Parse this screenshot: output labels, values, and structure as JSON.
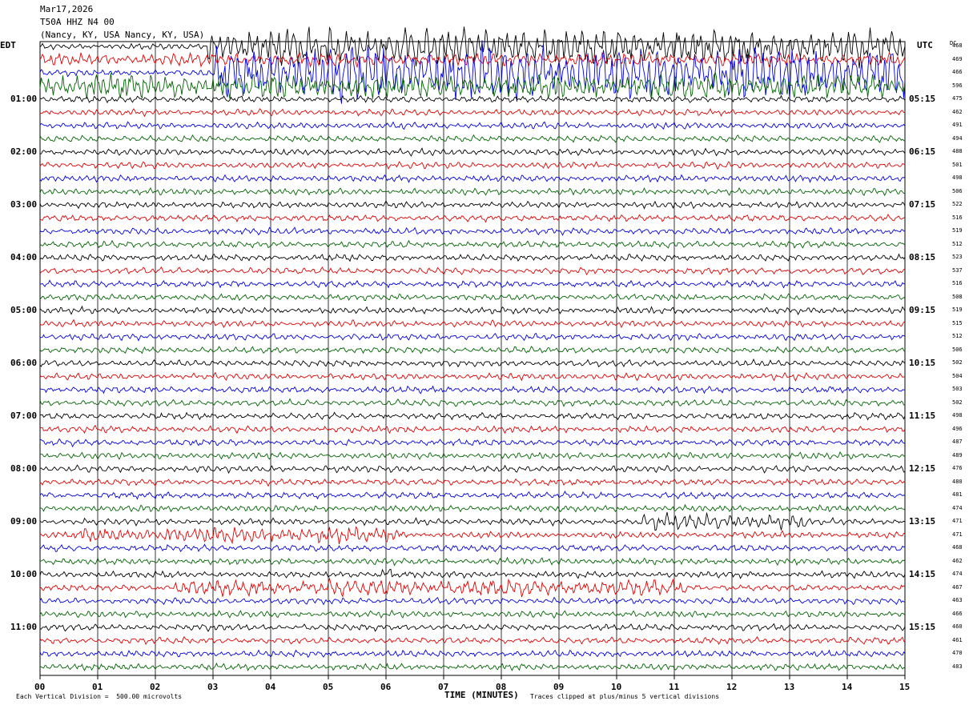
{
  "header": {
    "date": "Mar17,2026",
    "channel": "T50A HHZ N4 00",
    "location": "(Nancy, KY, USA Nancy, KY, USA)"
  },
  "left_zone": "EDT",
  "right_zone": "UTC",
  "dc_label": "DC",
  "left_hours": [
    "01:00",
    "02:00",
    "03:00",
    "04:00",
    "05:00",
    "06:00",
    "07:00",
    "08:00",
    "09:00",
    "10:00",
    "11:00"
  ],
  "right_hours": [
    "05:15",
    "06:15",
    "07:15",
    "08:15",
    "09:15",
    "10:15",
    "11:15",
    "12:15",
    "13:15",
    "14:15",
    "15:15"
  ],
  "dc_values": [
    "468",
    "469",
    "466",
    "596",
    "475",
    "462",
    "491",
    "494",
    "488",
    "501",
    "498",
    "506",
    "522",
    "516",
    "519",
    "512",
    "523",
    "537",
    "516",
    "508",
    "519",
    "515",
    "512",
    "506",
    "502",
    "504",
    "503",
    "502",
    "498",
    "496",
    "487",
    "489",
    "476",
    "480",
    "481",
    "474",
    "471",
    "471",
    "468",
    "462",
    "474",
    "467",
    "463",
    "466",
    "460",
    "461",
    "470",
    "483"
  ],
  "xlabel": "TIME (MINUTES)",
  "footer_left": "Each Vertical Division =  500.00 microvolts",
  "footer_right": "Traces clipped at plus/minus 5 vertical divisions",
  "colors": {
    "trace_cycle": [
      "#000000",
      "#e00000",
      "#0000e0",
      "#006400"
    ],
    "grid": "#000000"
  },
  "chart_data": {
    "type": "line",
    "x_unit": "minutes",
    "xlim": [
      0,
      15
    ],
    "x_ticks": [
      "00",
      "01",
      "02",
      "03",
      "04",
      "05",
      "06",
      "07",
      "08",
      "09",
      "10",
      "11",
      "12",
      "13",
      "14",
      "15"
    ],
    "rows": 48,
    "minutes_per_row": 15,
    "clip_divisions": 5,
    "events": [
      {
        "row": 0,
        "from_min": 2.9,
        "to_min": 15,
        "amp": 6
      },
      {
        "row": 1,
        "from_min": 0,
        "to_min": 15,
        "amp": 2
      },
      {
        "row": 2,
        "from_min": 3.0,
        "to_min": 15,
        "amp": 9
      },
      {
        "row": 3,
        "from_min": 0,
        "to_min": 15,
        "amp": 4
      },
      {
        "row": 36,
        "from_min": 10.4,
        "to_min": 13.3,
        "amp": 2.5
      },
      {
        "row": 37,
        "from_min": 0.7,
        "to_min": 6.3,
        "amp": 2.5
      },
      {
        "row": 40,
        "from_min": 5.9,
        "to_min": 6.1,
        "amp": 2.5
      },
      {
        "row": 41,
        "from_min": 2.3,
        "to_min": 11.2,
        "amp": 2.5
      }
    ]
  }
}
